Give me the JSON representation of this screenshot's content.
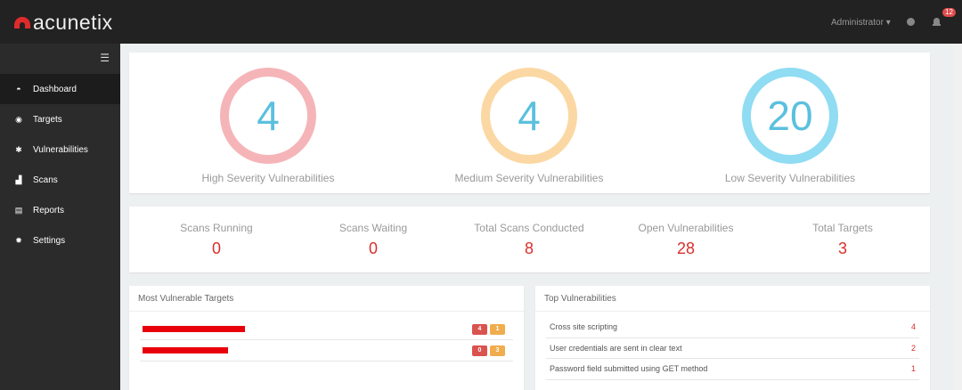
{
  "header": {
    "brand": "acunetix",
    "user": "Administrator",
    "notifications": "12"
  },
  "sidebar": {
    "items": [
      {
        "label": "Dashboard",
        "icon": "gauge-icon"
      },
      {
        "label": "Targets",
        "icon": "target-icon"
      },
      {
        "label": "Vulnerabilities",
        "icon": "bug-icon"
      },
      {
        "label": "Scans",
        "icon": "chart-icon"
      },
      {
        "label": "Reports",
        "icon": "file-icon"
      },
      {
        "label": "Settings",
        "icon": "gear-icon"
      }
    ]
  },
  "severity": [
    {
      "count": "4",
      "label": "High Severity Vulnerabilities",
      "color": "#f5b5b8"
    },
    {
      "count": "4",
      "label": "Medium Severity Vulnerabilities",
      "color": "#fbd8a3"
    },
    {
      "count": "20",
      "label": "Low Severity Vulnerabilities",
      "color": "#8fdcf3"
    }
  ],
  "stats": [
    {
      "label": "Scans Running",
      "value": "0"
    },
    {
      "label": "Scans Waiting",
      "value": "0"
    },
    {
      "label": "Total Scans Conducted",
      "value": "8"
    },
    {
      "label": "Open Vulnerabilities",
      "value": "28"
    },
    {
      "label": "Total Targets",
      "value": "3"
    }
  ],
  "most_vulnerable": {
    "title": "Most Vulnerable Targets",
    "rows": [
      {
        "high": "4",
        "medium": "1"
      },
      {
        "high": "0",
        "medium": "3"
      }
    ]
  },
  "top_vulns": {
    "title": "Top Vulnerabilities",
    "rows": [
      {
        "name": "Cross site scripting",
        "count": "4"
      },
      {
        "name": "User credentials are sent in clear text",
        "count": "2"
      },
      {
        "name": "Password field submitted using GET method",
        "count": "1"
      }
    ]
  }
}
